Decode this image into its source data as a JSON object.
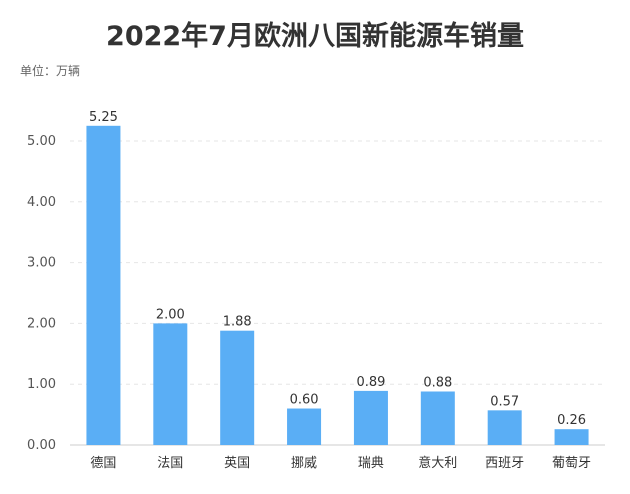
{
  "chart_data": {
    "type": "bar",
    "title": "2022年7月欧洲八国新能源车销量",
    "unit_label": "单位：万辆",
    "categories": [
      "德国",
      "法国",
      "英国",
      "挪威",
      "瑞典",
      "意大利",
      "西班牙",
      "葡萄牙"
    ],
    "values": [
      5.25,
      2.0,
      1.88,
      0.6,
      0.89,
      0.88,
      0.57,
      0.26
    ],
    "data_labels": [
      "5.25",
      "2.00",
      "1.88",
      "0.60",
      "0.89",
      "0.88",
      "0.57",
      "0.26"
    ],
    "yticks": [
      "0.00",
      "1.00",
      "2.00",
      "3.00",
      "4.00",
      "5.00"
    ],
    "ylim": [
      0,
      5.0
    ],
    "xlabel": "",
    "ylabel": "",
    "grid": true,
    "colors": {
      "bar": "#5aaef5",
      "grid": "#e6e6e6",
      "axis": "#cccccc"
    }
  }
}
